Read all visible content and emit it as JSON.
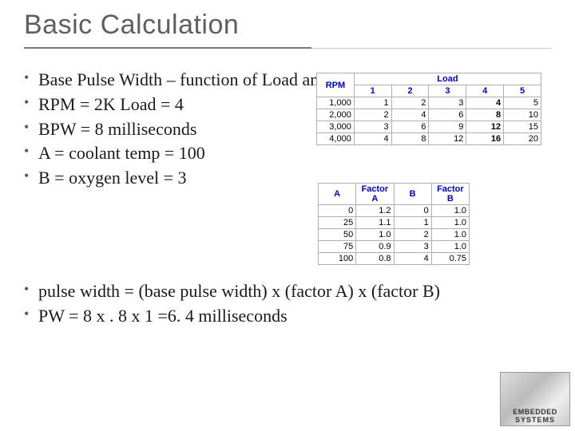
{
  "title": "Basic Calculation",
  "bullets_top": [
    "Base Pulse Width – function of Load and RPM",
    "RPM = 2K Load = 4",
    "BPW = 8 milliseconds",
    "A = coolant temp = 100",
    "B = oxygen level = 3"
  ],
  "bullets_bottom": [
    "pulse width = (base pulse width) x (factor A) x (factor B)",
    "PW = 8 x . 8 x 1 =6. 4 milliseconds"
  ],
  "table1": {
    "h_rpm": "RPM",
    "h_load": "Load",
    "cols": [
      "1",
      "2",
      "3",
      "4",
      "5"
    ],
    "rows": [
      {
        "head": "1,000",
        "cells": [
          "1",
          "2",
          "3",
          "4",
          "5"
        ]
      },
      {
        "head": "2,000",
        "cells": [
          "2",
          "4",
          "6",
          "8",
          "10"
        ]
      },
      {
        "head": "3,000",
        "cells": [
          "3",
          "6",
          "9",
          "12",
          "15"
        ]
      },
      {
        "head": "4,000",
        "cells": [
          "4",
          "8",
          "12",
          "16",
          "20"
        ]
      }
    ]
  },
  "table2": {
    "headers": [
      "A",
      "Factor A",
      "B",
      "Factor B"
    ],
    "rows": [
      [
        "0",
        "1.2",
        "0",
        "1.0"
      ],
      [
        "25",
        "1.1",
        "1",
        "1.0"
      ],
      [
        "50",
        "1.0",
        "2",
        "1.0"
      ],
      [
        "75",
        "0.9",
        "3",
        "1.0"
      ],
      [
        "100",
        "0.8",
        "4",
        "0.75"
      ]
    ]
  },
  "logo": {
    "line1": "EMBEDDED",
    "line2": "SYSTEMS"
  }
}
